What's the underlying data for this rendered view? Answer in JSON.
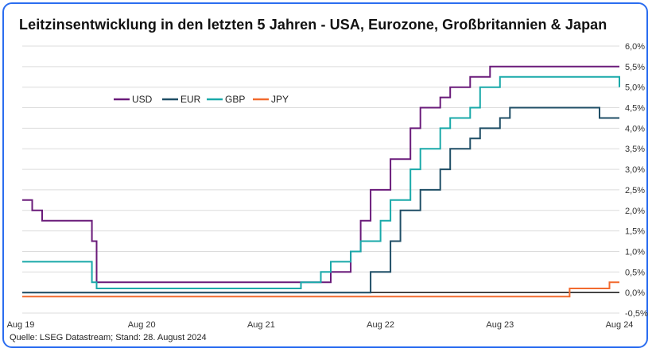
{
  "chart_data": {
    "type": "line",
    "step": true,
    "title": "Leitzinsentwicklung in den letzten 5 Jahren - USA, Eurozone, Großbritannien & Japan",
    "source": "Quelle: LSEG Datastream; Stand: 28. August 2024",
    "x_ticks": [
      "Aug 19",
      "Aug 20",
      "Aug 21",
      "Aug 22",
      "Aug 23",
      "Aug 24"
    ],
    "y_ticks": [
      "6,0%",
      "5,5%",
      "5,0%",
      "4,5%",
      "4,0%",
      "3,5%",
      "3,0%",
      "2,5%",
      "2,0%",
      "1,5%",
      "1,0%",
      "0,5%",
      "0,0%",
      "-0,5%"
    ],
    "ylim": [
      -0.5,
      6.0
    ],
    "xlim": [
      "2019-08",
      "2024-08"
    ],
    "y_axis_side": "right",
    "grid": "horizontal",
    "legend_position": "top-left",
    "colors": {
      "USD": "#6a1b7a",
      "EUR": "#1f4e66",
      "GBP": "#19a9a9",
      "JPY": "#f26a2e",
      "zero_line": "#111111"
    },
    "series": [
      {
        "name": "USD",
        "x": [
          "2019-08",
          "2019-09",
          "2019-10",
          "2020-03",
          "2020-03-15",
          "2022-03",
          "2022-05",
          "2022-06",
          "2022-07",
          "2022-09",
          "2022-11",
          "2022-12",
          "2023-02",
          "2023-03",
          "2023-05",
          "2023-07",
          "2024-08"
        ],
        "values": [
          2.25,
          2.0,
          1.75,
          1.25,
          0.25,
          0.5,
          1.0,
          1.75,
          2.5,
          3.25,
          4.0,
          4.5,
          4.75,
          5.0,
          5.25,
          5.5,
          5.5
        ]
      },
      {
        "name": "EUR",
        "x": [
          "2019-08",
          "2022-07",
          "2022-09",
          "2022-10",
          "2022-12",
          "2023-02",
          "2023-03",
          "2023-05",
          "2023-06",
          "2023-08",
          "2023-09",
          "2024-06",
          "2024-08"
        ],
        "values": [
          0.0,
          0.5,
          1.25,
          2.0,
          2.5,
          3.0,
          3.5,
          3.75,
          4.0,
          4.25,
          4.5,
          4.25,
          4.25
        ]
      },
      {
        "name": "GBP",
        "x": [
          "2019-08",
          "2020-03",
          "2020-03-15",
          "2021-12",
          "2022-02",
          "2022-03",
          "2022-05",
          "2022-06",
          "2022-08",
          "2022-09",
          "2022-11",
          "2022-12",
          "2023-02",
          "2023-03",
          "2023-05",
          "2023-06",
          "2023-08",
          "2024-08-01",
          "2024-08"
        ],
        "values": [
          0.75,
          0.25,
          0.1,
          0.25,
          0.5,
          0.75,
          1.0,
          1.25,
          1.75,
          2.25,
          3.0,
          3.5,
          4.0,
          4.25,
          4.5,
          5.0,
          5.25,
          5.0,
          5.0
        ]
      },
      {
        "name": "JPY",
        "x": [
          "2019-08",
          "2024-03",
          "2024-07",
          "2024-08"
        ],
        "values": [
          -0.1,
          0.1,
          0.25,
          0.25
        ]
      }
    ]
  }
}
